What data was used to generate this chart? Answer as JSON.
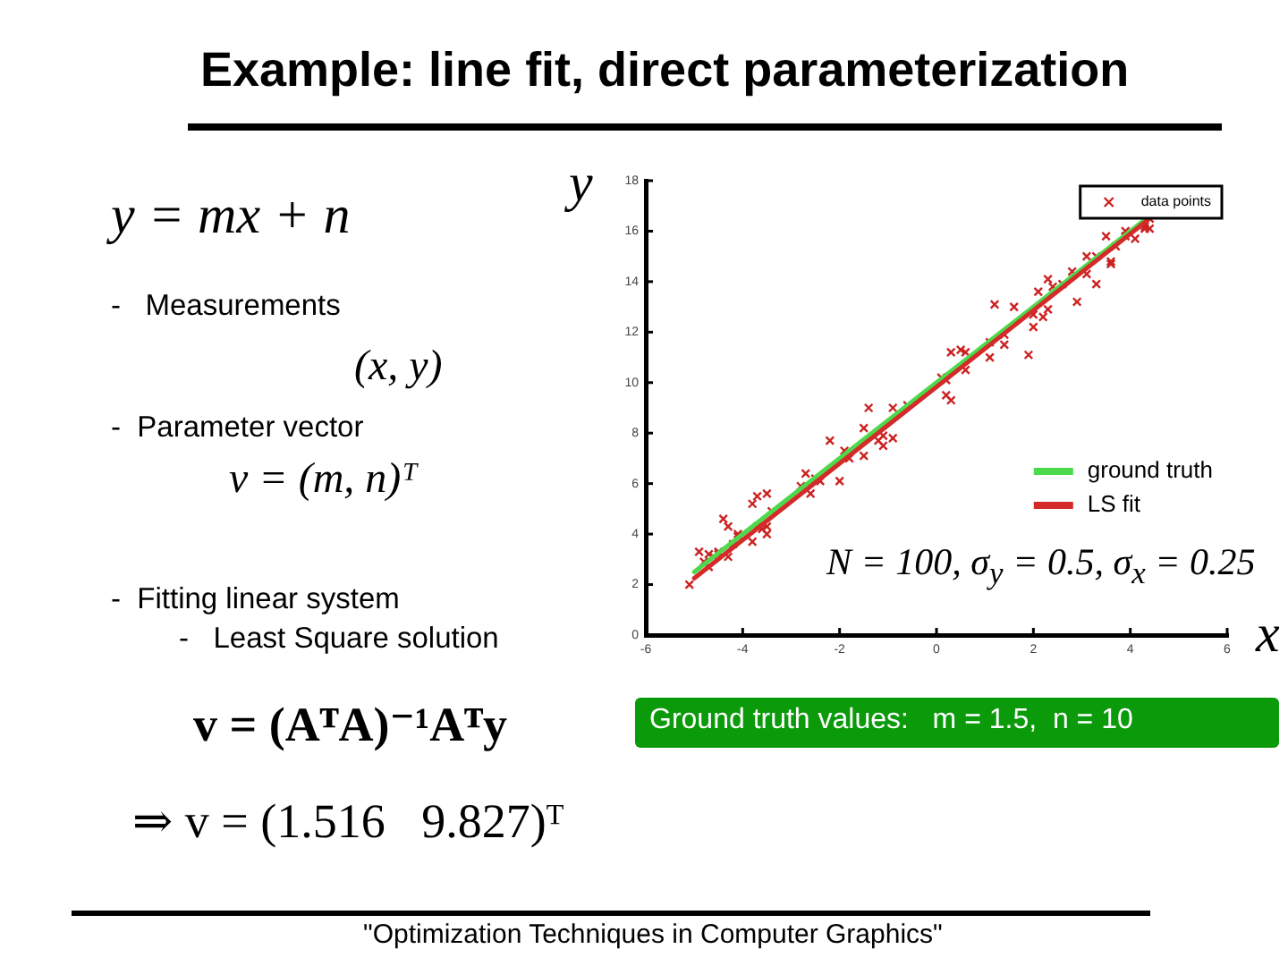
{
  "chart_data": {
    "type": "scatter",
    "title": "Example: line fit, direct parameterization",
    "xlabel": "x",
    "ylabel": "y",
    "xlim": [
      -6,
      6
    ],
    "xticks": [
      -6,
      -4,
      -2,
      0,
      2,
      4,
      6
    ],
    "ylim": [
      0,
      18
    ],
    "yticks": [
      0,
      2,
      4,
      6,
      8,
      10,
      12,
      14,
      16,
      18
    ],
    "grid": false,
    "legend": "top right",
    "series": [
      {
        "name": "data points",
        "type": "scatter",
        "marker": "cross",
        "color": "#cc2222",
        "x": [
          -5.1,
          -4.9,
          -4.8,
          -4.7,
          -4.7,
          -4.6,
          -4.5,
          -4.5,
          -4.4,
          -4.3,
          -4.3,
          -4.2,
          -4.1,
          -4.1,
          -3.8,
          -3.8,
          -3.7,
          -3.7,
          -3.6,
          -3.5,
          -3.5,
          -3.5,
          -3.4,
          -2.8,
          -2.7,
          -2.6,
          -2.5,
          -2.4,
          -2.2,
          -2.0,
          -1.9,
          -1.8,
          -1.5,
          -1.5,
          -1.4,
          -1.2,
          -1.1,
          -1.1,
          -0.9,
          -0.9,
          -0.6,
          0.1,
          0.2,
          0.2,
          0.3,
          0.3,
          0.5,
          0.6,
          0.6,
          1.1,
          1.1,
          1.2,
          1.4,
          1.4,
          1.6,
          1.9,
          2.0,
          2.0,
          2.1,
          2.2,
          2.3,
          2.3,
          2.4,
          2.6,
          2.8,
          2.9,
          3.1,
          3.1,
          3.3,
          3.3,
          3.5,
          3.6,
          3.6,
          3.7,
          3.9,
          3.9,
          4.1,
          4.3,
          4.3,
          4.4,
          4.4
        ],
        "values": [
          2.0,
          3.3,
          2.9,
          3.2,
          2.7,
          3.1,
          3.3,
          3.2,
          4.6,
          4.3,
          3.1,
          3.6,
          3.9,
          4.0,
          5.2,
          3.7,
          4.3,
          5.5,
          4.2,
          4.0,
          4.3,
          5.6,
          4.9,
          5.9,
          6.4,
          5.6,
          6.2,
          6.1,
          7.7,
          6.1,
          7.3,
          7.0,
          8.2,
          7.1,
          9.0,
          7.7,
          7.5,
          7.9,
          9.0,
          7.8,
          9.1,
          10.2,
          10.1,
          9.5,
          9.3,
          11.2,
          11.3,
          10.5,
          11.2,
          11.0,
          11.6,
          13.1,
          11.9,
          11.5,
          13.0,
          11.1,
          12.2,
          12.7,
          13.6,
          12.6,
          12.9,
          14.1,
          13.8,
          13.9,
          14.4,
          13.2,
          14.3,
          15.0,
          13.9,
          15.0,
          15.8,
          14.8,
          14.7,
          15.4,
          15.8,
          16.0,
          15.7,
          16.1,
          16.2,
          16.5,
          16.1
        ]
      },
      {
        "name": "ground truth",
        "type": "line",
        "marker": "none",
        "color": "#4cd94c",
        "x": [
          -5,
          4.4
        ],
        "values": [
          2.5,
          16.6
        ]
      },
      {
        "name": "LS fit",
        "type": "line",
        "marker": "none",
        "color": "#d42a2a",
        "x": [
          -5,
          4.4
        ],
        "values": [
          2.25,
          16.5
        ]
      }
    ],
    "annotations": [
      "y = mx + n",
      "-   Measurements",
      "(x, y)",
      "-  Parameter vector",
      "v = (m, n)ᵀ",
      "-  Fitting linear system",
      "-   Least Square solution",
      "v = (AᵀA)⁻¹Aᵀy",
      "⇒ v = (1.516   9.827)ᵀ",
      "N = 100, σ$_{y}$ = 0.5, σ$_{x}$ = 0.25",
      "Ground truth values:   m = 1.5,  n = 10",
      "\"Optimization Techniques in Computer Graphics\""
    ]
  }
}
